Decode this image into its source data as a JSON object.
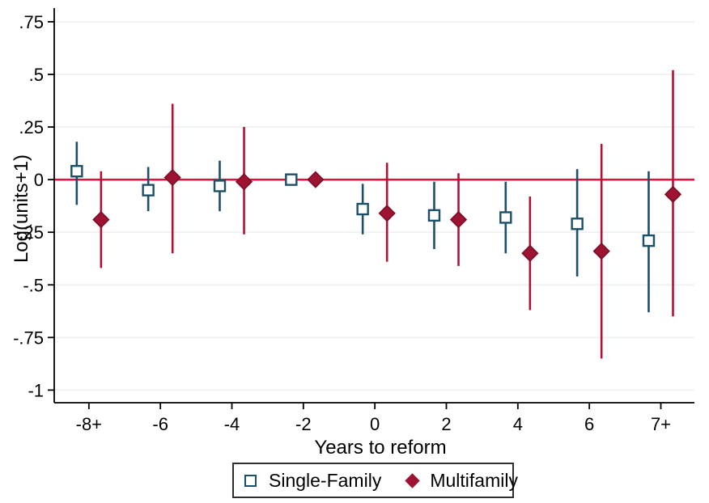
{
  "figure": {
    "background": "#ffffff"
  },
  "chart_data": {
    "type": "scatter",
    "subtype": "event-study coefficient plot with confidence intervals",
    "title": "",
    "xlabel": "Years to reform",
    "ylabel": "Log(units+1)",
    "xlim": [
      -8.97,
      8.94
    ],
    "ylim": [
      -1.06,
      0.815
    ],
    "grid": true,
    "legend_position": "bottom-center",
    "x_ticks": [
      {
        "value": -8,
        "label": "-8+"
      },
      {
        "value": -6,
        "label": "-6"
      },
      {
        "value": -4,
        "label": "-4"
      },
      {
        "value": -2,
        "label": "-2"
      },
      {
        "value": 0,
        "label": "0"
      },
      {
        "value": 2,
        "label": "2"
      },
      {
        "value": 4,
        "label": "4"
      },
      {
        "value": 6,
        "label": "6"
      },
      {
        "value": 8,
        "label": "7+"
      }
    ],
    "y_ticks": [
      {
        "value": 0.75,
        "label": ".75"
      },
      {
        "value": 0.5,
        "label": ".5"
      },
      {
        "value": 0.25,
        "label": ".25"
      },
      {
        "value": 0,
        "label": "0"
      },
      {
        "value": -0.25,
        "label": "-.25"
      },
      {
        "value": -0.5,
        "label": "-.5"
      },
      {
        "value": -0.75,
        "label": "-.75"
      },
      {
        "value": -1,
        "label": "-1"
      }
    ],
    "zero_line_value": 0,
    "colors": {
      "single_family": "#1c4f68",
      "multifamily_line": "#b01235",
      "multifamily_fill": "#9d1331",
      "multifamily_edge": "#7c0d27",
      "zero_line": "#e1103d",
      "grid": "#eff1f2",
      "axis": "#000000"
    },
    "series": [
      {
        "name": "Single-Family",
        "marker": "square-open",
        "x_offset_years": -0.34,
        "points": [
          {
            "x": -8,
            "x_label": "-8+",
            "est": 0.04,
            "lo": -0.12,
            "hi": 0.18
          },
          {
            "x": -6,
            "x_label": "-6",
            "est": -0.05,
            "lo": -0.15,
            "hi": 0.06
          },
          {
            "x": -4,
            "x_label": "-4",
            "est": -0.03,
            "lo": -0.15,
            "hi": 0.09
          },
          {
            "x": -2,
            "x_label": "-2",
            "est": 0.0,
            "lo": null,
            "hi": null
          },
          {
            "x": 0,
            "x_label": "0",
            "est": -0.14,
            "lo": -0.26,
            "hi": -0.02
          },
          {
            "x": 2,
            "x_label": "2",
            "est": -0.17,
            "lo": -0.33,
            "hi": -0.01
          },
          {
            "x": 4,
            "x_label": "4",
            "est": -0.18,
            "lo": -0.35,
            "hi": -0.01
          },
          {
            "x": 6,
            "x_label": "6",
            "est": -0.21,
            "lo": -0.46,
            "hi": 0.05
          },
          {
            "x": 8,
            "x_label": "7+",
            "est": -0.29,
            "lo": -0.63,
            "hi": 0.04
          }
        ]
      },
      {
        "name": "Multifamily",
        "marker": "diamond-filled",
        "x_offset_years": 0.34,
        "points": [
          {
            "x": -8,
            "x_label": "-8+",
            "est": -0.19,
            "lo": -0.42,
            "hi": 0.04
          },
          {
            "x": -6,
            "x_label": "-6",
            "est": 0.01,
            "lo": -0.35,
            "hi": 0.36
          },
          {
            "x": -4,
            "x_label": "-4",
            "est": -0.01,
            "lo": -0.26,
            "hi": 0.25
          },
          {
            "x": -2,
            "x_label": "-2",
            "est": 0.0,
            "lo": null,
            "hi": null
          },
          {
            "x": 0,
            "x_label": "0",
            "est": -0.16,
            "lo": -0.39,
            "hi": 0.08
          },
          {
            "x": 2,
            "x_label": "2",
            "est": -0.19,
            "lo": -0.41,
            "hi": 0.03
          },
          {
            "x": 4,
            "x_label": "4",
            "est": -0.35,
            "lo": -0.62,
            "hi": -0.08
          },
          {
            "x": 6,
            "x_label": "6",
            "est": -0.34,
            "lo": -0.85,
            "hi": 0.17
          },
          {
            "x": 8,
            "x_label": "7+",
            "est": -0.07,
            "lo": -0.65,
            "hi": 0.52
          }
        ]
      }
    ]
  },
  "legend": {
    "items": [
      {
        "label": "Single-Family",
        "marker": "square-open"
      },
      {
        "label": "Multifamily",
        "marker": "diamond-filled"
      }
    ]
  }
}
